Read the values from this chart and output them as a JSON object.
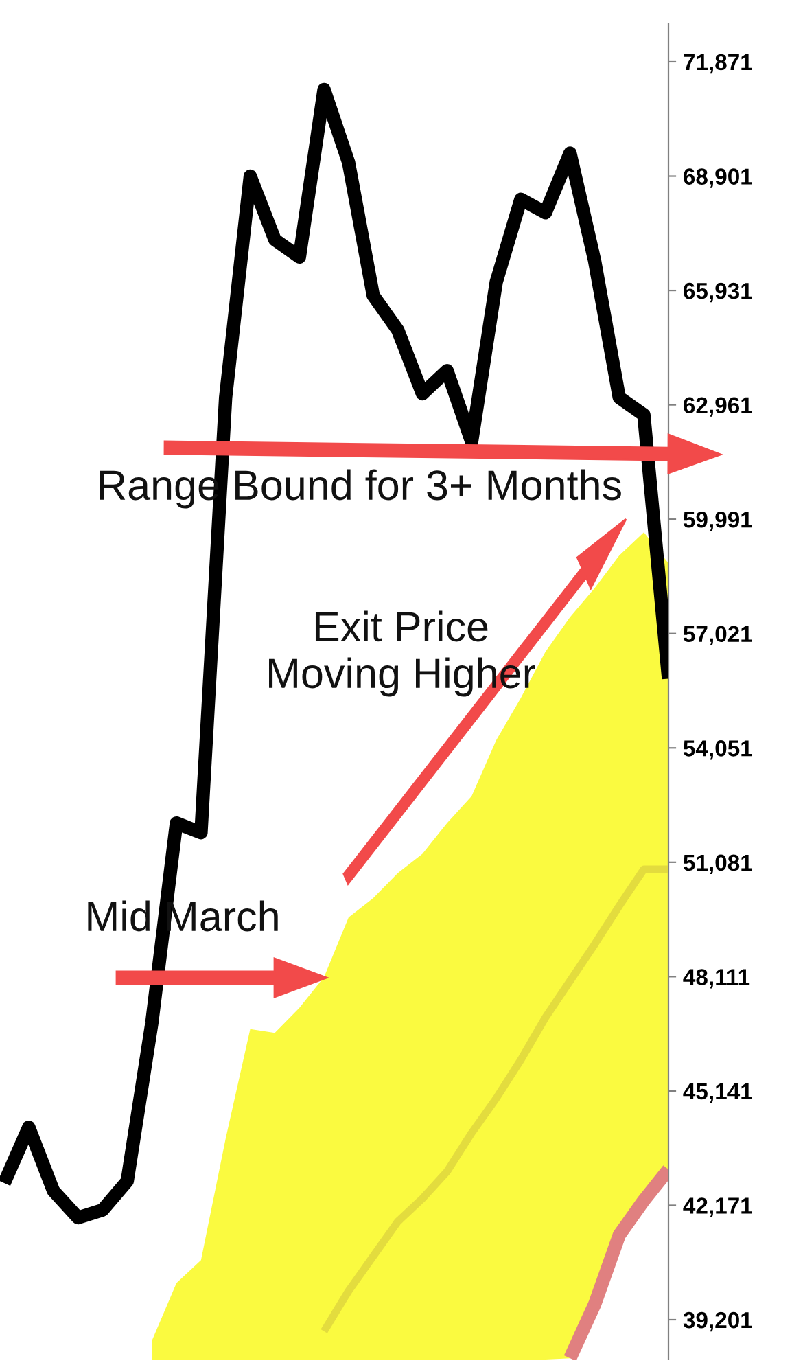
{
  "chart_data": {
    "type": "line",
    "categories": [
      null,
      null,
      null,
      null,
      null,
      null,
      null,
      null,
      null,
      null,
      null,
      null,
      null,
      null,
      null,
      null,
      null,
      null,
      null,
      null,
      null,
      null,
      null,
      null,
      null,
      null,
      null,
      null
    ],
    "series": [
      {
        "type": "area",
        "color": "#fafa40",
        "values": [
          null,
          null,
          null,
          null,
          null,
          null,
          38650,
          40150,
          40750,
          43900,
          46750,
          46650,
          47300,
          48100,
          49650,
          50150,
          50800,
          51300,
          52100,
          52800,
          54250,
          55350,
          56550,
          57450,
          58200,
          59050,
          59650,
          58850
        ]
      },
      {
        "type": "line",
        "color": "#e3dc3e",
        "values": [
          null,
          null,
          null,
          null,
          null,
          null,
          null,
          null,
          null,
          null,
          null,
          null,
          null,
          38900,
          39950,
          40850,
          41750,
          42350,
          43050,
          44050,
          44950,
          45950,
          47050,
          48000,
          48950,
          49950,
          50900,
          50900
        ]
      },
      {
        "type": "line",
        "color": "#e08080",
        "values": [
          null,
          null,
          null,
          null,
          null,
          null,
          null,
          null,
          null,
          null,
          null,
          null,
          null,
          null,
          null,
          null,
          null,
          null,
          null,
          null,
          null,
          null,
          null,
          38200,
          39600,
          41400,
          42300,
          43100
        ]
      },
      {
        "color": "#000000",
        "values": [
          42750,
          44200,
          42550,
          41850,
          42050,
          42800,
          46900,
          52100,
          51850,
          63150,
          68900,
          67250,
          66800,
          71150,
          69250,
          65800,
          64900,
          63250,
          63850,
          62000,
          66150,
          68300,
          67950,
          69500,
          66700,
          63150,
          62700,
          55850
        ]
      }
    ],
    "ylim": [
      38167,
      72869
    ],
    "yticks": [
      {
        "value": 39201,
        "label": "39,201"
      },
      {
        "value": 42171,
        "label": "42,171"
      },
      {
        "value": 45141,
        "label": "45,141"
      },
      {
        "value": 48111,
        "label": "48,111"
      },
      {
        "value": 51081,
        "label": "51,081"
      },
      {
        "value": 54051,
        "label": "54,051"
      },
      {
        "value": 57021,
        "label": "57,021"
      },
      {
        "value": 59991,
        "label": "59,991"
      },
      {
        "value": 62961,
        "label": "62,961"
      },
      {
        "value": 65931,
        "label": "65,931"
      },
      {
        "value": 68901,
        "label": "68,901"
      },
      {
        "value": 71871,
        "label": "71,871"
      }
    ],
    "tick_labels": "y",
    "annotations": [
      "Range Bound for 3+ Months",
      "Exit Price\nMoving Higher",
      "Mid March"
    ]
  }
}
